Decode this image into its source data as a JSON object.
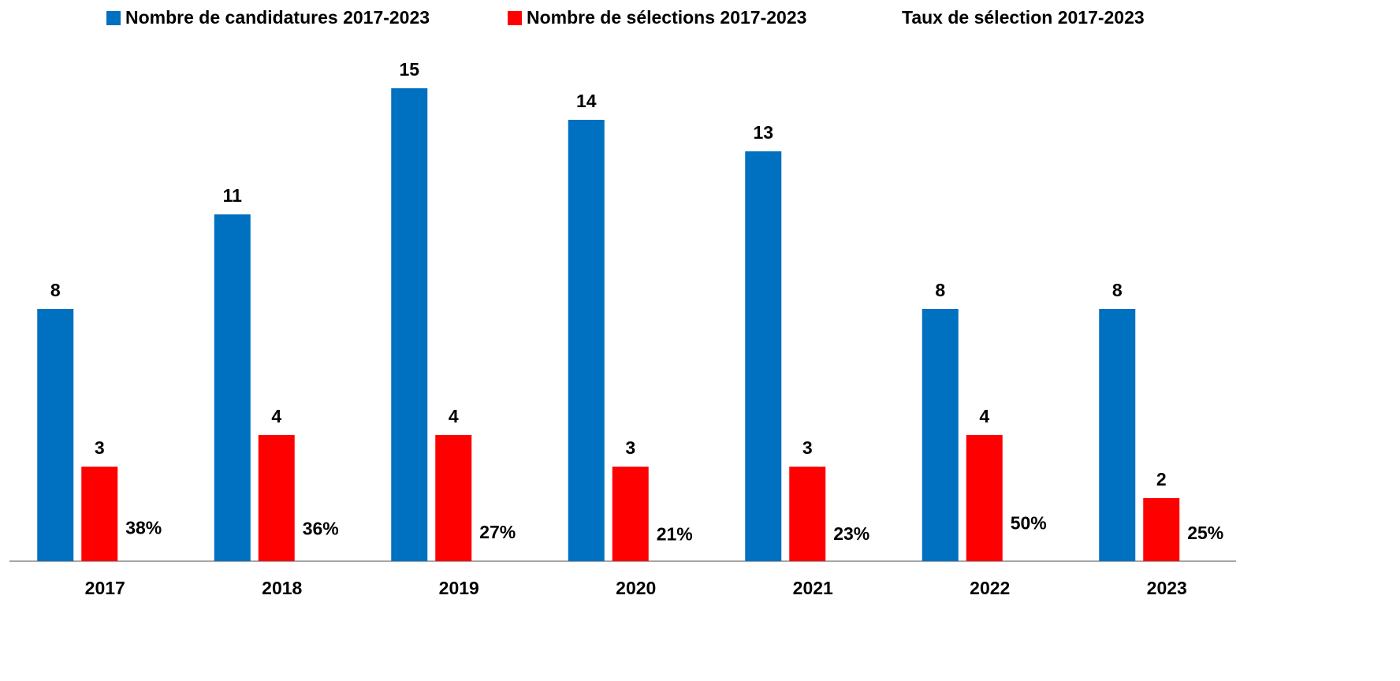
{
  "chart_data": {
    "type": "bar",
    "categories": [
      "2017",
      "2018",
      "2019",
      "2020",
      "2021",
      "2022",
      "2023"
    ],
    "series": [
      {
        "name": "Nombre de candidatures 2017-2023",
        "color": "#0070c0",
        "values": [
          8,
          11,
          15,
          14,
          13,
          8,
          8
        ]
      },
      {
        "name": "Nombre de sélections 2017-2023",
        "color": "#ff0000",
        "values": [
          3,
          4,
          4,
          3,
          3,
          4,
          2
        ]
      },
      {
        "name": "Taux de sélection 2017-2023",
        "color": "transparent",
        "axis": "y2",
        "values": [
          38,
          36,
          27,
          21,
          23,
          50,
          25
        ],
        "value_labels": [
          "38%",
          "36%",
          "27%",
          "21%",
          "23%",
          "50%",
          "25%"
        ]
      }
    ],
    "ylim": [
      0,
      16
    ],
    "y2lim": [
      0,
      1300
    ],
    "grid": false
  }
}
